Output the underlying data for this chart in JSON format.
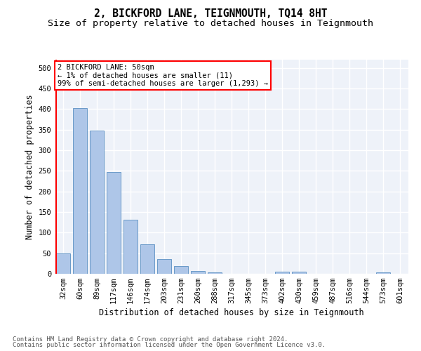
{
  "title_line1": "2, BICKFORD LANE, TEIGNMOUTH, TQ14 8HT",
  "title_line2": "Size of property relative to detached houses in Teignmouth",
  "xlabel": "Distribution of detached houses by size in Teignmouth",
  "ylabel": "Number of detached properties",
  "bar_labels": [
    "32sqm",
    "60sqm",
    "89sqm",
    "117sqm",
    "146sqm",
    "174sqm",
    "203sqm",
    "231sqm",
    "260sqm",
    "288sqm",
    "317sqm",
    "345sqm",
    "373sqm",
    "402sqm",
    "430sqm",
    "459sqm",
    "487sqm",
    "516sqm",
    "544sqm",
    "573sqm",
    "601sqm"
  ],
  "bar_values": [
    50,
    403,
    347,
    247,
    131,
    71,
    36,
    19,
    6,
    3,
    0,
    0,
    0,
    5,
    5,
    0,
    0,
    0,
    0,
    3,
    0
  ],
  "bar_color": "#aec6e8",
  "bar_edgecolor": "#5a8fc2",
  "annotation_text": "2 BICKFORD LANE: 50sqm\n← 1% of detached houses are smaller (11)\n99% of semi-detached houses are larger (1,293) →",
  "annotation_box_edgecolor": "red",
  "property_line_color": "red",
  "ylim": [
    0,
    520
  ],
  "yticks": [
    0,
    50,
    100,
    150,
    200,
    250,
    300,
    350,
    400,
    450,
    500
  ],
  "footer_line1": "Contains HM Land Registry data © Crown copyright and database right 2024.",
  "footer_line2": "Contains public sector information licensed under the Open Government Licence v3.0.",
  "bg_color": "#eef2f9",
  "grid_color": "white",
  "title_fontsize": 10.5,
  "subtitle_fontsize": 9.5,
  "axis_label_fontsize": 8.5,
  "tick_fontsize": 7.5,
  "annotation_fontsize": 7.5,
  "footer_fontsize": 6.5
}
